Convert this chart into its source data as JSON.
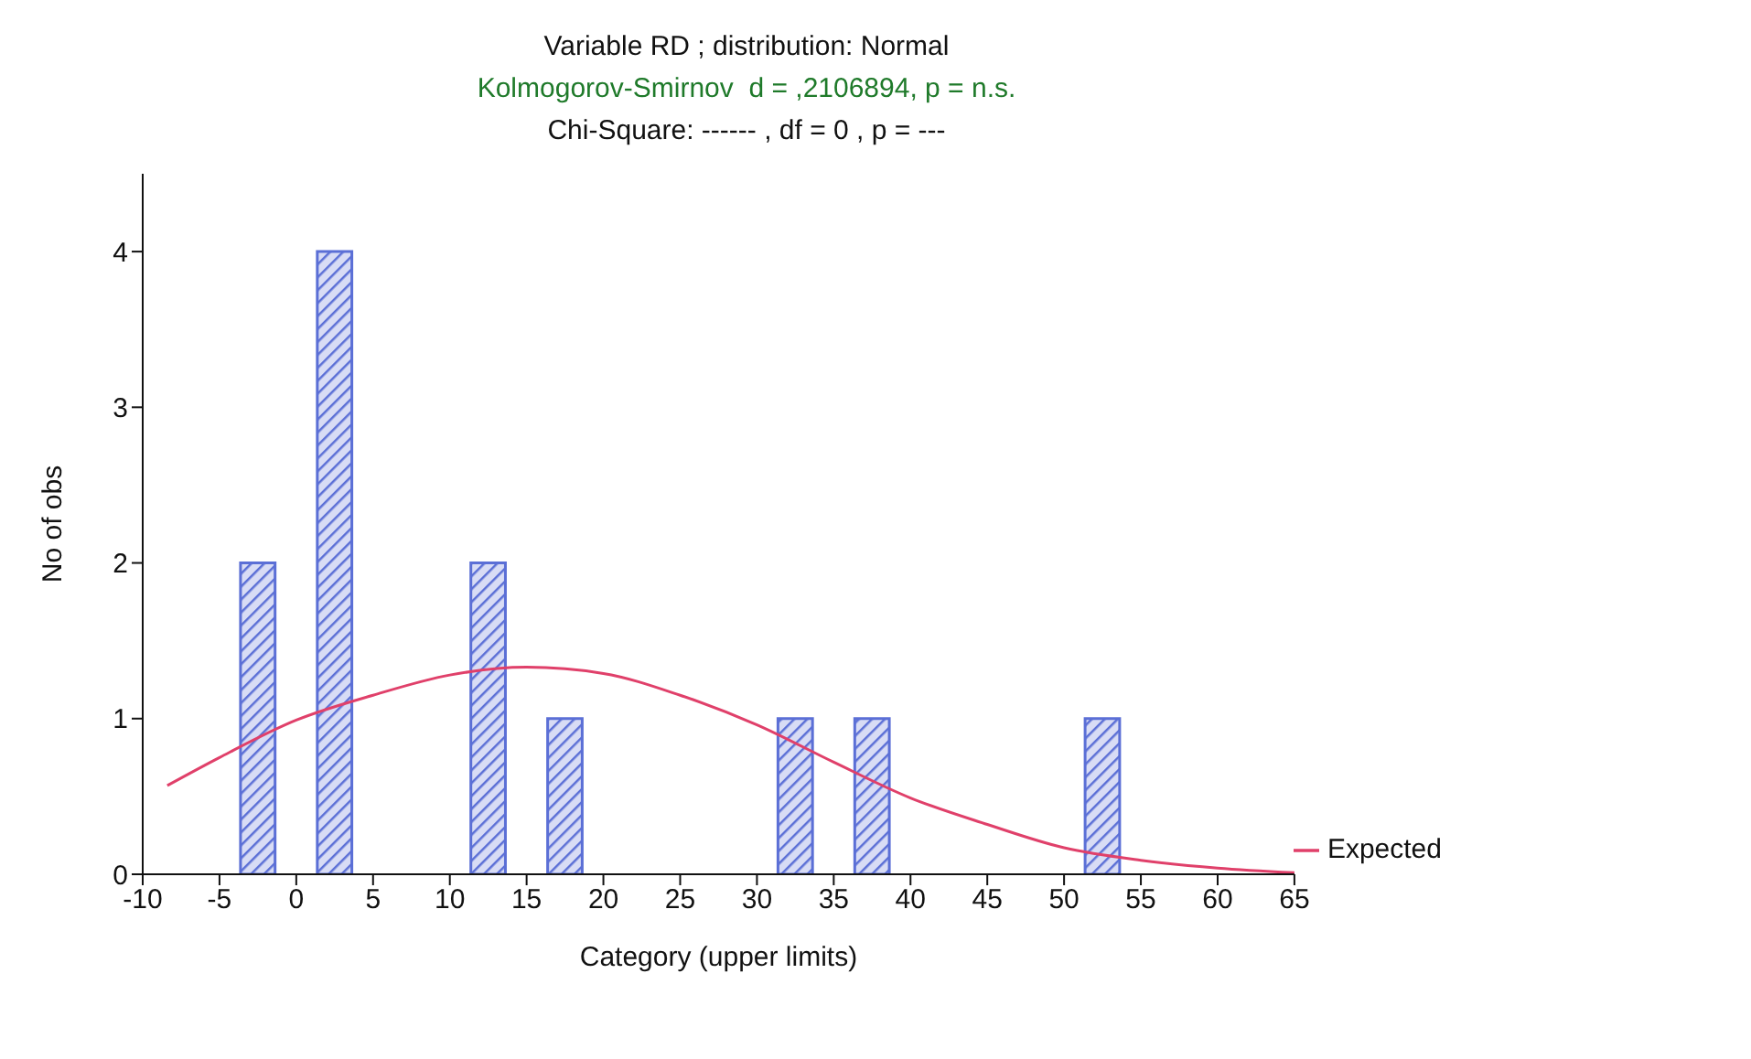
{
  "chart_data": {
    "type": "histogram",
    "title": "Variable RD ; distribution: Normal",
    "subtitle": "Kolmogorov-Smirnov  d = ,2106894, p = n.s.",
    "annotations": [
      "Chi-Square: ------ , df = 0 , p = ---"
    ],
    "xlabel": "Category (upper limits)",
    "ylabel": "No of obs",
    "bins": [
      -5,
      0,
      5,
      10,
      15,
      20,
      25,
      30,
      35,
      40,
      45,
      50,
      55
    ],
    "values": [
      2,
      4,
      0,
      2,
      1,
      0,
      0,
      1,
      1,
      0,
      0,
      1
    ],
    "color": "#5b6fd6",
    "series": [
      {
        "type": "line",
        "name": "Expected",
        "color": "#e0406a",
        "x": [
          -8.4,
          -5,
          0,
          5,
          10,
          15,
          20,
          25,
          30,
          35,
          40,
          45,
          50,
          55,
          60,
          65
        ],
        "values": [
          0.57,
          0.75,
          0.99,
          1.15,
          1.28,
          1.33,
          1.29,
          1.15,
          0.96,
          0.72,
          0.49,
          0.32,
          0.17,
          0.09,
          0.04,
          0.01
        ]
      }
    ],
    "xlim": [
      -10,
      65
    ],
    "xticks": [
      -10,
      -5,
      0,
      5,
      10,
      15,
      20,
      25,
      30,
      35,
      40,
      45,
      50,
      55,
      60,
      65
    ],
    "ylim": [
      0,
      4.5
    ],
    "yticks": [
      0,
      1,
      2,
      3,
      4
    ],
    "grid": false,
    "legend": "bottom right",
    "marker": "none",
    "line_style": "solid"
  }
}
